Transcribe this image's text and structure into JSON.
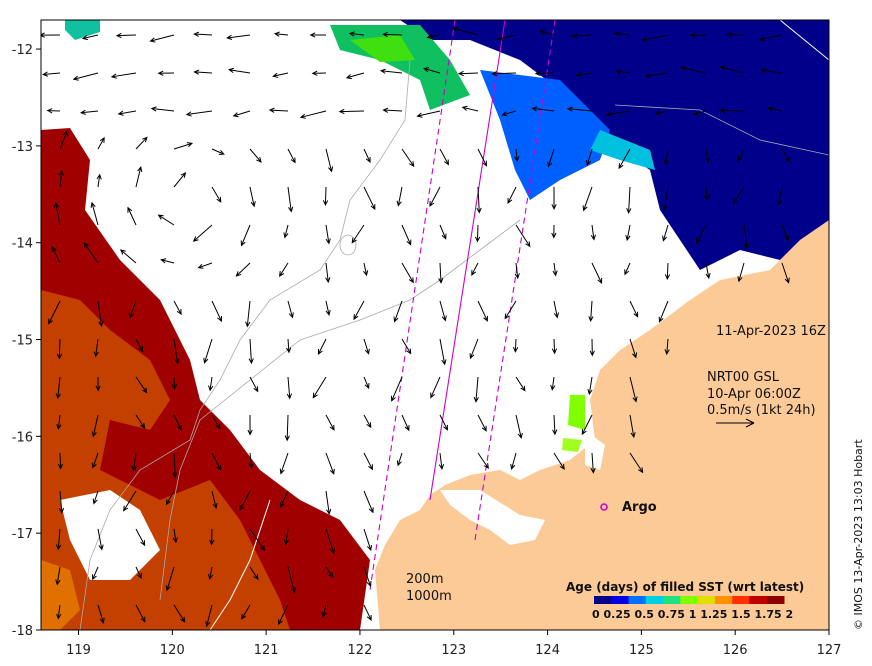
{
  "map": {
    "longitude_ticks": [
      "119",
      "120",
      "121",
      "122",
      "123",
      "124",
      "125",
      "126",
      "127"
    ],
    "latitude_ticks": [
      "-12",
      "-13",
      "-14",
      "-15",
      "-16",
      "-17",
      "-18"
    ],
    "lon_range": [
      118.6,
      127
    ],
    "lat_range": [
      -18,
      -11.7
    ]
  },
  "info": {
    "date": "11-Apr-2023 16Z",
    "product": "NRT00 GSL",
    "product_time": "10-Apr 06:00Z",
    "scale": "0.5m/s (1kt 24h)"
  },
  "argo": {
    "label": "Argo"
  },
  "contours": {
    "label_200": "200m",
    "label_1000": "1000m"
  },
  "legend": {
    "title": "Age (days) of filled SST (wrt latest)",
    "tick_text": "0  0.25 0.5 0.75  1  1.25 1.5 1.75  2",
    "colors": [
      "#00008b",
      "#0000e0",
      "#0070ff",
      "#00d0e0",
      "#20e080",
      "#80ff00",
      "#e0e000",
      "#ff9000",
      "#ff3000",
      "#c00000",
      "#8b0000"
    ]
  },
  "copyright": "© IMOS 13-Apr-2023 13:03 Hobart"
}
